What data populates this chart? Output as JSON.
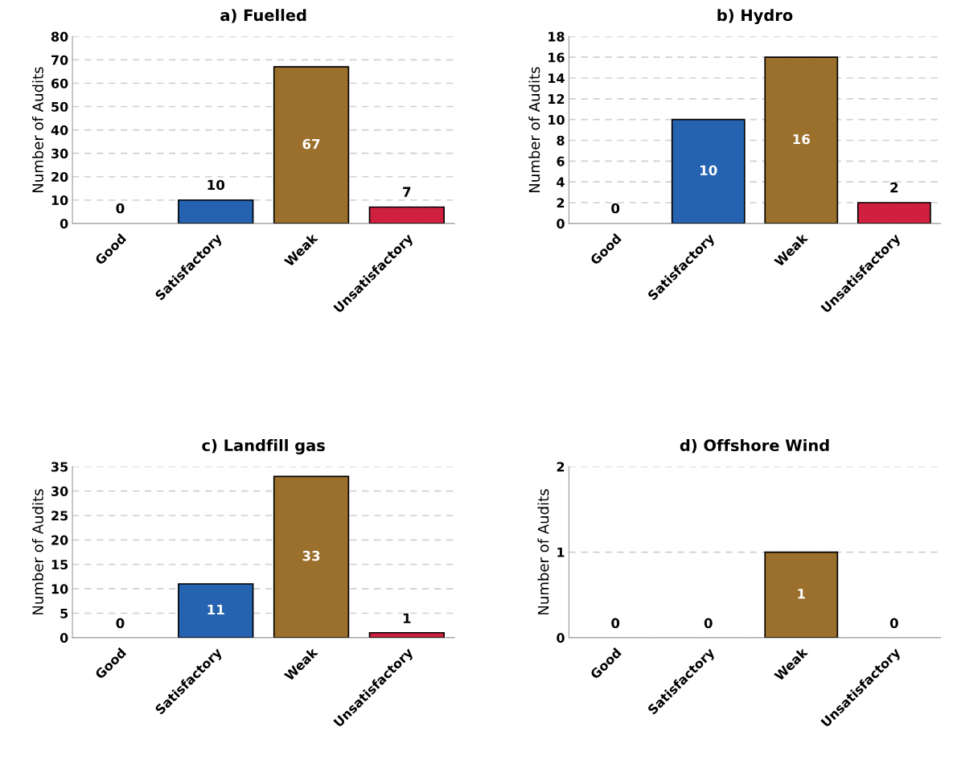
{
  "chart_data": [
    {
      "type": "bar",
      "title": "a) Fuelled",
      "ylabel": "Number of Audits",
      "categories": [
        "Good",
        "Satisfactory",
        "Weak",
        "Unsatisfactory"
      ],
      "values": [
        0,
        10,
        67,
        7
      ],
      "colors": [
        null,
        "#2563b0",
        "#9b6f2c",
        "#d0203f"
      ],
      "ylim": [
        0,
        80
      ],
      "yticks": [
        0,
        10,
        20,
        30,
        40,
        50,
        60,
        70,
        80
      ],
      "grid": "y",
      "data_labels": true
    },
    {
      "type": "bar",
      "title": "b) Hydro",
      "ylabel": "Number of Audits",
      "categories": [
        "Good",
        "Satisfactory",
        "Weak",
        "Unsatisfactory"
      ],
      "values": [
        0,
        10,
        16,
        2
      ],
      "colors": [
        null,
        "#2563b0",
        "#9b6f2c",
        "#d0203f"
      ],
      "ylim": [
        0,
        18
      ],
      "yticks": [
        0,
        2,
        4,
        6,
        8,
        10,
        12,
        14,
        16,
        18
      ],
      "grid": "y",
      "data_labels": true
    },
    {
      "type": "bar",
      "title": "c) Landfill gas",
      "ylabel": "Number of Audits",
      "categories": [
        "Good",
        "Satisfactory",
        "Weak",
        "Unsatisfactory"
      ],
      "values": [
        0,
        11,
        33,
        1
      ],
      "colors": [
        null,
        "#2563b0",
        "#9b6f2c",
        "#d0203f"
      ],
      "ylim": [
        0,
        35
      ],
      "yticks": [
        0,
        5,
        10,
        15,
        20,
        25,
        30,
        35
      ],
      "grid": "y",
      "data_labels": true
    },
    {
      "type": "bar",
      "title": "d) Offshore Wind",
      "ylabel": "Number of Audits",
      "categories": [
        "Good",
        "Satisfactory",
        "Weak",
        "Unsatisfactory"
      ],
      "values": [
        0,
        0,
        1,
        0
      ],
      "colors": [
        null,
        null,
        "#9b6f2c",
        null
      ],
      "ylim": [
        0,
        2
      ],
      "yticks": [
        0,
        1,
        2
      ],
      "grid": "y",
      "data_labels": true
    }
  ]
}
